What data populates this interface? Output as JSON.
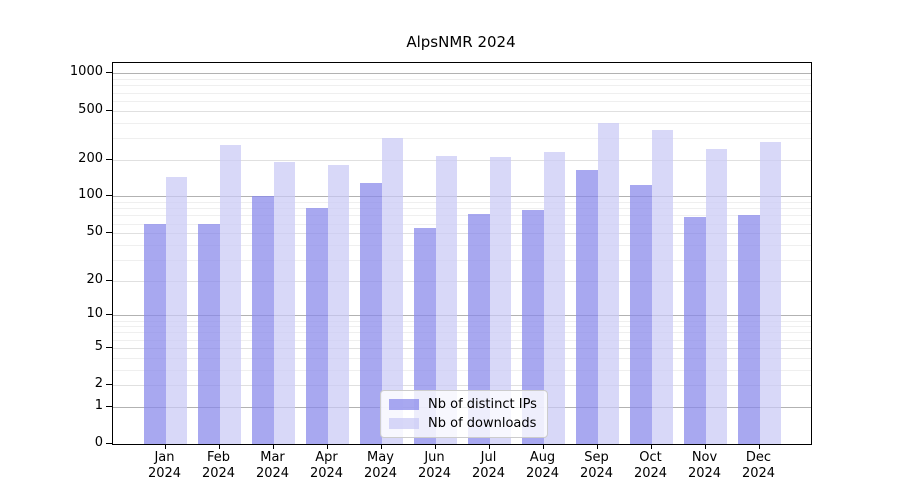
{
  "chart_data": {
    "type": "bar",
    "title": "AlpsNMR 2024",
    "year_label": "2024",
    "months": [
      "Jan",
      "Feb",
      "Mar",
      "Apr",
      "May",
      "Jun",
      "Jul",
      "Aug",
      "Sep",
      "Oct",
      "Nov",
      "Dec"
    ],
    "series": [
      {
        "name": "Nb of distinct IPs",
        "color": "rgba(134,134,234,0.72)",
        "values": [
          60,
          60,
          100,
          80,
          130,
          55,
          72,
          77,
          165,
          125,
          68,
          70
        ]
      },
      {
        "name": "Nb of downloads",
        "color": "rgba(201,201,245,0.72)",
        "values": [
          145,
          265,
          190,
          180,
          300,
          215,
          210,
          230,
          400,
          350,
          245,
          280
        ]
      }
    ],
    "yscale": "log1p",
    "ylim": [
      0,
      1200
    ],
    "yticks": [
      0,
      1,
      2,
      5,
      10,
      20,
      50,
      100,
      200,
      500,
      1000
    ],
    "ytick_labels": [
      "0",
      "1",
      "2",
      "5",
      "10",
      "20",
      "50",
      "100",
      "200",
      "500",
      "1000"
    ],
    "grid": true,
    "legend_position": "lower center",
    "axis_color": "#000000",
    "grid_decade_color": "#b2b2b2",
    "grid_major_color": "#e0e0e0",
    "grid_minor_color": "#efefef"
  }
}
